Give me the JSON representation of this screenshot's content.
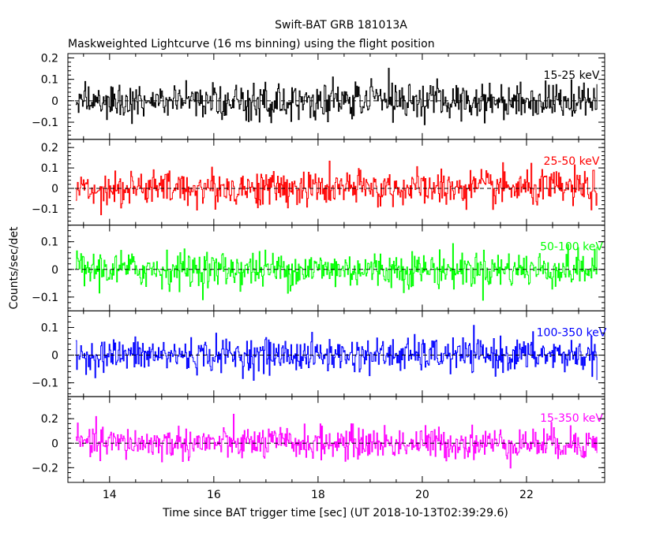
{
  "figure": {
    "title": "Swift-BAT GRB 181013A",
    "subtitle": "Maskweighted Lightcurve (16 ms binning) using the flight position",
    "xlabel": "Time since BAT trigger time [sec] (UT 2018-10-13T02:39:29.6)",
    "ylabel": "Counts/sec/det"
  },
  "chart_data": [
    {
      "type": "line",
      "band": "15-25 keV",
      "color": "#000000",
      "xlim": [
        13.2,
        23.5
      ],
      "ylim": [
        -0.18,
        0.22
      ],
      "xticks": [
        14,
        16,
        18,
        20,
        22
      ],
      "yticks": [
        -0.1,
        0,
        0.1,
        0.2
      ],
      "ytick_labels": [
        "-0.1",
        "0",
        "0.1",
        "0.2"
      ],
      "bin_width": 0.016,
      "x_range": [
        13.35,
        23.35
      ],
      "noise_amplitude": 0.075
    },
    {
      "type": "line",
      "band": "25-50 keV",
      "color": "#ff0000",
      "xlim": [
        13.2,
        23.5
      ],
      "ylim": [
        -0.18,
        0.24
      ],
      "xticks": [
        14,
        16,
        18,
        20,
        22
      ],
      "yticks": [
        -0.1,
        0,
        0.1,
        0.2
      ],
      "ytick_labels": [
        "-0.1",
        "0",
        "0.1",
        "0.2"
      ],
      "bin_width": 0.016,
      "x_range": [
        13.35,
        23.35
      ],
      "noise_amplitude": 0.08
    },
    {
      "type": "line",
      "band": "50-100 keV",
      "color": "#00ff00",
      "xlim": [
        13.2,
        23.5
      ],
      "ylim": [
        -0.15,
        0.16
      ],
      "xticks": [
        14,
        16,
        18,
        20,
        22
      ],
      "yticks": [
        -0.1,
        0,
        0.1
      ],
      "ytick_labels": [
        "-0.1",
        "0",
        "0.1"
      ],
      "bin_width": 0.016,
      "x_range": [
        13.35,
        23.35
      ],
      "noise_amplitude": 0.06
    },
    {
      "type": "line",
      "band": "100-350 keV",
      "color": "#0000ff",
      "xlim": [
        13.2,
        23.5
      ],
      "ylim": [
        -0.15,
        0.16
      ],
      "xticks": [
        14,
        16,
        18,
        20,
        22
      ],
      "yticks": [
        -0.1,
        0,
        0.1
      ],
      "ytick_labels": [
        "-0.1",
        "0",
        "0.1"
      ],
      "bin_width": 0.016,
      "x_range": [
        13.35,
        23.35
      ],
      "noise_amplitude": 0.055
    },
    {
      "type": "line",
      "band": "15-350 keV",
      "color": "#ff00ff",
      "xlim": [
        13.2,
        23.5
      ],
      "ylim": [
        -0.32,
        0.38
      ],
      "xticks": [
        14,
        16,
        18,
        20,
        22
      ],
      "yticks": [
        -0.2,
        0,
        0.2
      ],
      "ytick_labels": [
        "-0.2",
        "0",
        "0.2"
      ],
      "bin_width": 0.016,
      "x_range": [
        13.35,
        23.35
      ],
      "noise_amplitude": 0.12
    }
  ]
}
